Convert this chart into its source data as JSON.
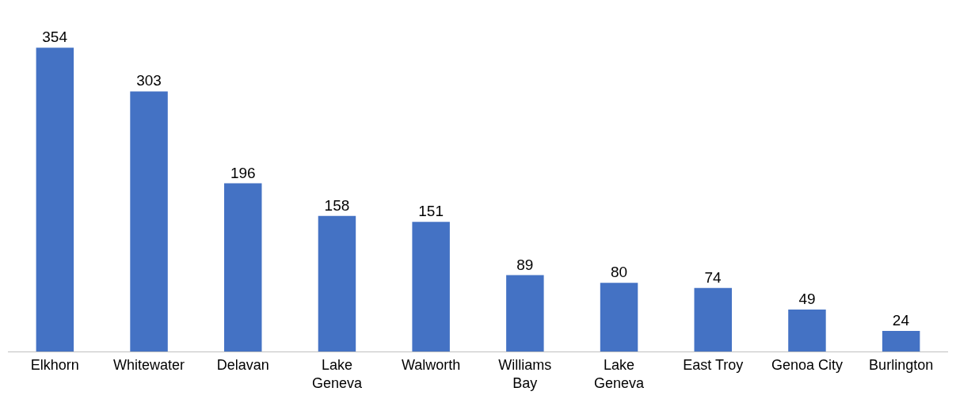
{
  "chart_data": {
    "type": "bar",
    "categories": [
      "Elkhorn",
      "Whitewater",
      "Delavan",
      "Lake Geneva",
      "Walworth",
      "Williams Bay",
      "Lake Geneva",
      "East Troy",
      "Genoa City",
      "Burlington"
    ],
    "values": [
      354,
      303,
      196,
      158,
      151,
      89,
      80,
      74,
      49,
      24
    ],
    "color": "#4472c4",
    "data_labels": true,
    "legend": false
  }
}
